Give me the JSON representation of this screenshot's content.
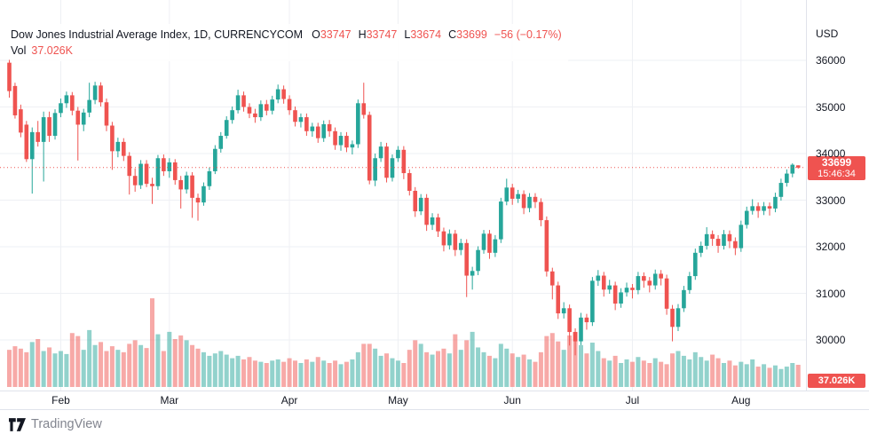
{
  "legend": {
    "title": "Dow Jones Industrial Average Index, 1D, CURRENCYCOM",
    "items": [
      {
        "label": "O",
        "value": "33747"
      },
      {
        "label": "H",
        "value": "33747"
      },
      {
        "label": "L",
        "value": "33674"
      },
      {
        "label": "C",
        "value": "33699"
      }
    ],
    "change": "−56 (−0.17%)",
    "vol_label": "Vol",
    "vol_value": "37.026K"
  },
  "price_axis": {
    "currency": "USD",
    "ticks": [
      36000,
      35000,
      34000,
      33000,
      32000,
      31000,
      30000
    ],
    "last_price_label": "33699",
    "countdown": "15:46:34",
    "volume_label": "37.026K"
  },
  "time_axis": {
    "months": [
      {
        "label": "Feb",
        "index": 9
      },
      {
        "label": "Mar",
        "index": 28
      },
      {
        "label": "Apr",
        "index": 49
      },
      {
        "label": "May",
        "index": 68
      },
      {
        "label": "Jun",
        "index": 88
      },
      {
        "label": "Jul",
        "index": 109
      },
      {
        "label": "Aug",
        "index": 128
      }
    ]
  },
  "footer": {
    "brand": "TradingView"
  },
  "colors": {
    "up": "#26a69a",
    "down": "#ef5350",
    "accent_red": "#ef5350",
    "grid": "#eef0f4",
    "axis_border": "#e0e3eb",
    "text": "#131722",
    "muted_text": "#82858f",
    "badge_bg": "#ef5350",
    "background": "#ffffff"
  },
  "chart_data": {
    "type": "candlestick+volume",
    "title": "Dow Jones Industrial Average Index",
    "interval": "1D",
    "exchange": "CURRENCYCOM",
    "currency": "USD",
    "last": {
      "open": 33747,
      "high": 33747,
      "low": 33674,
      "close": 33699,
      "change": -56,
      "change_pct": -0.17,
      "volume_k": 37.026,
      "countdown": "15:46:34"
    },
    "price_line": 33699,
    "ylim": [
      29000,
      37300
    ],
    "y_ticks": [
      30000,
      31000,
      32000,
      33000,
      34000,
      35000,
      36000
    ],
    "x_months": [
      "Feb",
      "Mar",
      "Apr",
      "May",
      "Jun",
      "Jul",
      "Aug"
    ],
    "legend_position": "top-left",
    "grid": true,
    "candles_note": "each entry = [open, high, low, close, volume_in_K], daily bars mid-Jan to mid-Aug",
    "candles": [
      [
        35950,
        36020,
        35200,
        35340,
        62
      ],
      [
        35450,
        35520,
        34750,
        34820,
        68
      ],
      [
        34950,
        35050,
        34350,
        34450,
        64
      ],
      [
        34620,
        34700,
        33820,
        33880,
        58
      ],
      [
        33880,
        34560,
        33140,
        34460,
        75
      ],
      [
        34460,
        34700,
        34150,
        34250,
        80
      ],
      [
        34250,
        34900,
        33400,
        34780,
        60
      ],
      [
        34780,
        34900,
        34250,
        34380,
        66
      ],
      [
        34380,
        34950,
        34300,
        34870,
        56
      ],
      [
        34870,
        35180,
        34780,
        35080,
        60
      ],
      [
        35080,
        35330,
        34980,
        35250,
        55
      ],
      [
        35250,
        35320,
        34820,
        34920,
        90
      ],
      [
        34920,
        35000,
        33850,
        34620,
        85
      ],
      [
        34620,
        34960,
        34480,
        34880,
        62
      ],
      [
        34880,
        35520,
        34780,
        35150,
        95
      ],
      [
        35150,
        35540,
        35060,
        35460,
        70
      ],
      [
        35460,
        35530,
        35010,
        35100,
        75
      ],
      [
        35100,
        35180,
        34480,
        34600,
        60
      ],
      [
        34600,
        34680,
        33650,
        34050,
        68
      ],
      [
        34050,
        34340,
        33920,
        34250,
        62
      ],
      [
        34250,
        34330,
        33840,
        33950,
        58
      ],
      [
        33950,
        34030,
        33120,
        33520,
        72
      ],
      [
        33520,
        33680,
        33180,
        33320,
        78
      ],
      [
        33320,
        33860,
        33240,
        33780,
        70
      ],
      [
        33780,
        33860,
        33280,
        33350,
        65
      ],
      [
        33350,
        33480,
        32920,
        33300,
        148
      ],
      [
        33300,
        33970,
        33220,
        33900,
        88
      ],
      [
        33900,
        33980,
        33520,
        33620,
        60
      ],
      [
        33620,
        33900,
        33480,
        33810,
        92
      ],
      [
        33810,
        33880,
        33330,
        33430,
        80
      ],
      [
        33430,
        33520,
        32820,
        33230,
        86
      ],
      [
        33230,
        33610,
        33140,
        33530,
        78
      ],
      [
        33530,
        33600,
        32620,
        33050,
        70
      ],
      [
        33050,
        33140,
        32560,
        32950,
        64
      ],
      [
        32950,
        33380,
        32880,
        33300,
        58
      ],
      [
        33300,
        33700,
        33220,
        33620,
        52
      ],
      [
        33620,
        34180,
        33560,
        34100,
        56
      ],
      [
        34100,
        34460,
        34020,
        34380,
        60
      ],
      [
        34380,
        34800,
        34320,
        34720,
        54
      ],
      [
        34720,
        35010,
        34640,
        34930,
        48
      ],
      [
        34930,
        35370,
        34860,
        35250,
        52
      ],
      [
        35250,
        35330,
        34900,
        35000,
        46
      ],
      [
        35000,
        35080,
        34760,
        34860,
        50
      ],
      [
        34860,
        34960,
        34660,
        34780,
        44
      ],
      [
        34780,
        35140,
        34700,
        35060,
        42
      ],
      [
        35060,
        35150,
        34820,
        34920,
        40
      ],
      [
        34920,
        35240,
        34840,
        35160,
        44
      ],
      [
        35160,
        35480,
        35080,
        35380,
        46
      ],
      [
        35380,
        35460,
        35070,
        35170,
        42
      ],
      [
        35170,
        35250,
        34830,
        34930,
        48
      ],
      [
        34930,
        35010,
        34580,
        34680,
        44
      ],
      [
        34680,
        34860,
        34560,
        34780,
        40
      ],
      [
        34780,
        34860,
        34380,
        34480,
        46
      ],
      [
        34480,
        34660,
        34360,
        34580,
        42
      ],
      [
        34580,
        34660,
        34230,
        34330,
        50
      ],
      [
        34330,
        34710,
        34250,
        34630,
        44
      ],
      [
        34630,
        34720,
        34360,
        34480,
        40
      ],
      [
        34480,
        34560,
        34080,
        34180,
        44
      ],
      [
        34180,
        34460,
        34060,
        34380,
        38
      ],
      [
        34380,
        34460,
        34030,
        34130,
        42
      ],
      [
        34130,
        34280,
        33980,
        34200,
        46
      ],
      [
        34200,
        35160,
        34120,
        35080,
        58
      ],
      [
        35080,
        35520,
        34750,
        34830,
        72
      ],
      [
        34830,
        34900,
        33340,
        33420,
        72
      ],
      [
        33420,
        34000,
        33300,
        33900,
        64
      ],
      [
        33900,
        34250,
        33820,
        34150,
        52
      ],
      [
        34150,
        34230,
        33380,
        33480,
        56
      ],
      [
        33480,
        33980,
        33400,
        33900,
        48
      ],
      [
        33900,
        34160,
        33820,
        34080,
        44
      ],
      [
        34080,
        34160,
        33450,
        33580,
        40
      ],
      [
        33580,
        33660,
        33100,
        33200,
        62
      ],
      [
        33200,
        33280,
        32640,
        32760,
        78
      ],
      [
        32760,
        33130,
        32680,
        33050,
        72
      ],
      [
        33050,
        33130,
        32340,
        32470,
        58
      ],
      [
        32470,
        32720,
        32360,
        32630,
        54
      ],
      [
        32630,
        32710,
        32210,
        32330,
        60
      ],
      [
        32330,
        32410,
        31900,
        32030,
        64
      ],
      [
        32030,
        32370,
        31940,
        32280,
        56
      ],
      [
        32280,
        32360,
        31800,
        31930,
        88
      ],
      [
        31930,
        32170,
        31820,
        32080,
        62
      ],
      [
        32080,
        32160,
        30920,
        31380,
        78
      ],
      [
        31380,
        31570,
        31080,
        31480,
        92
      ],
      [
        31480,
        32010,
        31390,
        31930,
        66
      ],
      [
        31930,
        32360,
        31850,
        32280,
        58
      ],
      [
        32280,
        32360,
        31740,
        31870,
        52
      ],
      [
        31870,
        32250,
        31780,
        32160,
        48
      ],
      [
        32160,
        33050,
        32080,
        32970,
        72
      ],
      [
        32970,
        33460,
        32890,
        33270,
        64
      ],
      [
        33270,
        33350,
        32900,
        33030,
        56
      ],
      [
        33030,
        33220,
        32940,
        33130,
        50
      ],
      [
        33130,
        33210,
        32700,
        32830,
        54
      ],
      [
        32830,
        33150,
        32740,
        33070,
        46
      ],
      [
        33070,
        33150,
        32830,
        32960,
        42
      ],
      [
        32960,
        33040,
        32440,
        32570,
        58
      ],
      [
        32570,
        32650,
        31360,
        31470,
        85
      ],
      [
        31470,
        31550,
        30870,
        31170,
        90
      ],
      [
        31170,
        31250,
        30450,
        30570,
        76
      ],
      [
        30570,
        30810,
        30460,
        30680,
        62
      ],
      [
        30680,
        30760,
        29880,
        30170,
        86
      ],
      [
        30170,
        30250,
        29670,
        29970,
        92
      ],
      [
        29970,
        30580,
        29890,
        30480,
        70
      ],
      [
        30480,
        30560,
        30220,
        30380,
        56
      ],
      [
        30380,
        31350,
        30300,
        31270,
        74
      ],
      [
        31270,
        31500,
        31160,
        31380,
        60
      ],
      [
        31380,
        31460,
        30930,
        31080,
        48
      ],
      [
        31080,
        31290,
        30990,
        31170,
        44
      ],
      [
        31170,
        31250,
        30640,
        30780,
        52
      ],
      [
        30780,
        31110,
        30690,
        31020,
        40
      ],
      [
        31020,
        31230,
        30930,
        31120,
        46
      ],
      [
        31120,
        31200,
        30890,
        31070,
        42
      ],
      [
        31070,
        31460,
        30980,
        31370,
        50
      ],
      [
        31370,
        31450,
        31120,
        31270,
        44
      ],
      [
        31270,
        31350,
        31020,
        31170,
        40
      ],
      [
        31170,
        31510,
        31080,
        31420,
        48
      ],
      [
        31420,
        31500,
        31170,
        31320,
        42
      ],
      [
        31320,
        31400,
        30540,
        30670,
        38
      ],
      [
        30670,
        30750,
        29970,
        30280,
        56
      ],
      [
        30280,
        30770,
        30190,
        30680,
        60
      ],
      [
        30680,
        31160,
        30600,
        31070,
        52
      ],
      [
        31070,
        31460,
        30990,
        31370,
        46
      ],
      [
        31370,
        31960,
        31290,
        31870,
        58
      ],
      [
        31870,
        32110,
        31780,
        32020,
        50
      ],
      [
        32020,
        32420,
        31940,
        32270,
        44
      ],
      [
        32270,
        32350,
        32020,
        32170,
        54
      ],
      [
        32170,
        32250,
        31870,
        32020,
        48
      ],
      [
        32020,
        32360,
        31940,
        32270,
        40
      ],
      [
        32270,
        32350,
        31970,
        32120,
        44
      ],
      [
        32120,
        32200,
        31820,
        31970,
        36
      ],
      [
        31970,
        32560,
        31890,
        32470,
        42
      ],
      [
        32470,
        32860,
        32390,
        32770,
        38
      ],
      [
        32770,
        33020,
        32690,
        32870,
        46
      ],
      [
        32870,
        32950,
        32620,
        32770,
        34
      ],
      [
        32770,
        32960,
        32680,
        32870,
        38
      ],
      [
        32870,
        32950,
        32670,
        32820,
        32
      ],
      [
        32820,
        33160,
        32740,
        33070,
        36
      ],
      [
        33070,
        33460,
        32990,
        33370,
        30
      ],
      [
        33370,
        33660,
        33290,
        33570,
        34
      ],
      [
        33570,
        33790,
        33490,
        33760,
        40
      ],
      [
        33747,
        33747,
        33674,
        33699,
        37.026
      ]
    ]
  }
}
